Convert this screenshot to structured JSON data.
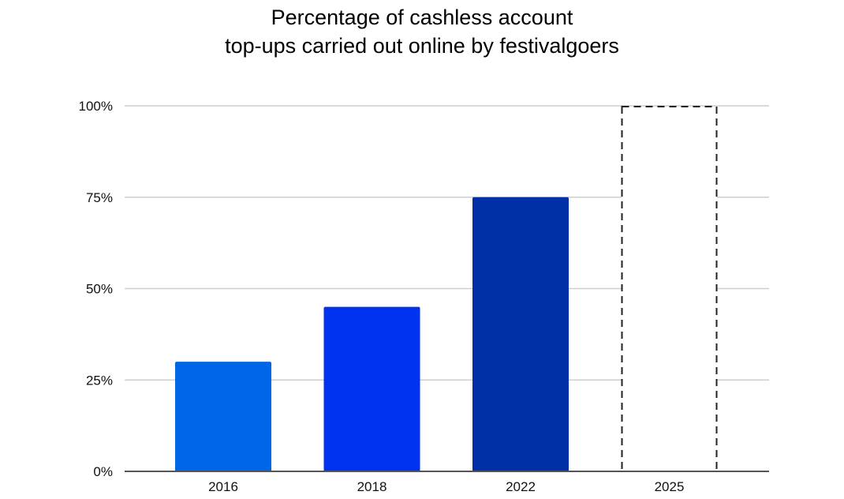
{
  "chart_data": {
    "type": "bar",
    "title_lines": [
      "Percentage of cashless account",
      "top-ups carried out online by festivalgoers"
    ],
    "xlabel": "",
    "ylabel": "",
    "categories": [
      "2016",
      "2018",
      "2022",
      "2025"
    ],
    "values": [
      30,
      45,
      75,
      100
    ],
    "projected": [
      false,
      false,
      false,
      true
    ],
    "bar_colors": [
      "#0066e8",
      "#0033f0",
      "#0030a8",
      "#ffffff"
    ],
    "ylim": [
      0,
      100
    ],
    "y_ticks": [
      0,
      25,
      50,
      75,
      100
    ],
    "y_tick_labels": [
      "0%",
      "25%",
      "50%",
      "75%",
      "100%"
    ],
    "grid": true,
    "legend": "none"
  }
}
